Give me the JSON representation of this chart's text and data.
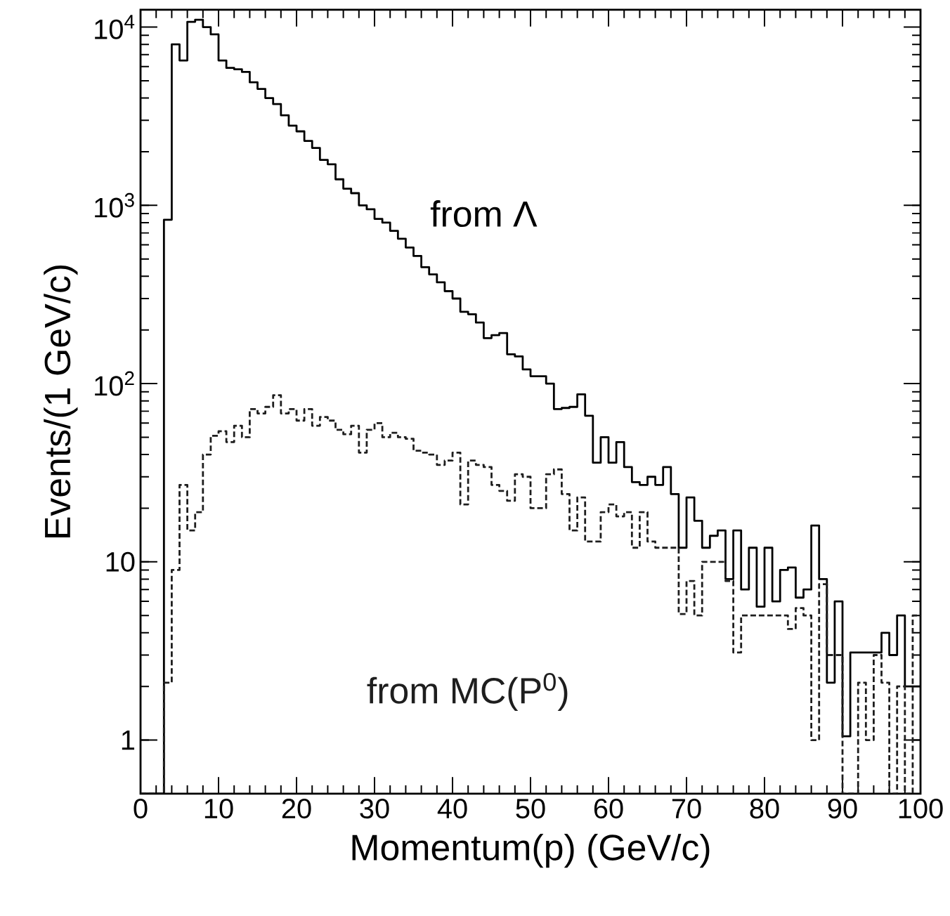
{
  "chart_data": {
    "type": "histogram",
    "xlabel": "Momentum(p)      (GeV/c)",
    "ylabel": "Events/(1 GeV/c)",
    "bins": [
      0,
      1,
      2,
      3,
      4,
      5,
      6,
      7,
      8,
      9,
      10,
      11,
      12,
      13,
      14,
      15,
      16,
      17,
      18,
      19,
      20,
      21,
      22,
      23,
      24,
      25,
      26,
      27,
      28,
      29,
      30,
      31,
      32,
      33,
      34,
      35,
      36,
      37,
      38,
      39,
      40,
      41,
      42,
      43,
      44,
      45,
      46,
      47,
      48,
      49,
      50,
      51,
      52,
      53,
      54,
      55,
      56,
      57,
      58,
      59,
      60,
      61,
      62,
      63,
      64,
      65,
      66,
      67,
      68,
      69,
      70,
      71,
      72,
      73,
      74,
      75,
      76,
      77,
      78,
      79,
      80,
      81,
      82,
      83,
      84,
      85,
      86,
      87,
      88,
      89,
      90,
      91,
      92,
      93,
      94,
      95,
      96,
      97,
      98,
      99,
      100
    ],
    "series": [
      {
        "name": "from Λ",
        "color": "#000000",
        "line_style": "solid",
        "values": [
          null,
          null,
          null,
          830,
          8000,
          6500,
          10700,
          11000,
          10000,
          9100,
          6500,
          5900,
          5800,
          5600,
          4900,
          4500,
          4000,
          3700,
          3200,
          2800,
          2600,
          2300,
          2100,
          1800,
          1700,
          1400,
          1240,
          1170,
          1000,
          950,
          840,
          800,
          720,
          650,
          580,
          520,
          450,
          410,
          370,
          330,
          300,
          253,
          245,
          220,
          180,
          187,
          192,
          146,
          142,
          120,
          110,
          110,
          100,
          72,
          73,
          74,
          87,
          66,
          36,
          50,
          36,
          47,
          34,
          28,
          27,
          30,
          27,
          34,
          24,
          12,
          23,
          17,
          12,
          14,
          15,
          8,
          15,
          7,
          12,
          5.6,
          12,
          6,
          9,
          9.3,
          6.3,
          7,
          16,
          8,
          2.1,
          6,
          1.05,
          3.1,
          3.1,
          3.1,
          3.1,
          4,
          3,
          5,
          2,
          2
        ]
      },
      {
        "name": "from MC(P$^{0}$)",
        "color": "#1e1e1e",
        "line_style": "dashed",
        "values": [
          null,
          null,
          null,
          2.1,
          9,
          27,
          15,
          19,
          40,
          51,
          54,
          47,
          58,
          50,
          72,
          68,
          74,
          86,
          68,
          72,
          62,
          72,
          58,
          65,
          62,
          55,
          52,
          58,
          41,
          55,
          60,
          50,
          53,
          50,
          49,
          42,
          41,
          40,
          35,
          37,
          41,
          21,
          37,
          35,
          34,
          27,
          25,
          22,
          31,
          30,
          20,
          20,
          31,
          33,
          24,
          15,
          23,
          13,
          13,
          19,
          21,
          18,
          19,
          12,
          19,
          13,
          12,
          12,
          12,
          5.1,
          7.8,
          5,
          10,
          10,
          10,
          7.8,
          3.1,
          5,
          5,
          5,
          5,
          5,
          5,
          4.2,
          5.5,
          5,
          1,
          7.5,
          3,
          3,
          null,
          null,
          2.1,
          1,
          3,
          2.1,
          null,
          2,
          null,
          5
        ]
      }
    ],
    "log": "y",
    "xlim": [
      0,
      100
    ],
    "xticks": [
      0,
      10,
      20,
      30,
      40,
      50,
      60,
      70,
      80,
      90,
      100
    ],
    "ylim": [
      0.5,
      12500
    ],
    "yticks": [
      {
        "value": 1,
        "label": "1"
      },
      {
        "value": 10,
        "label": "10"
      },
      {
        "value": 100,
        "label": "10$^{2}$"
      },
      {
        "value": 1000,
        "label": "10$^{3}$"
      },
      {
        "value": 10000,
        "label": "10$^{4}$"
      }
    ]
  }
}
